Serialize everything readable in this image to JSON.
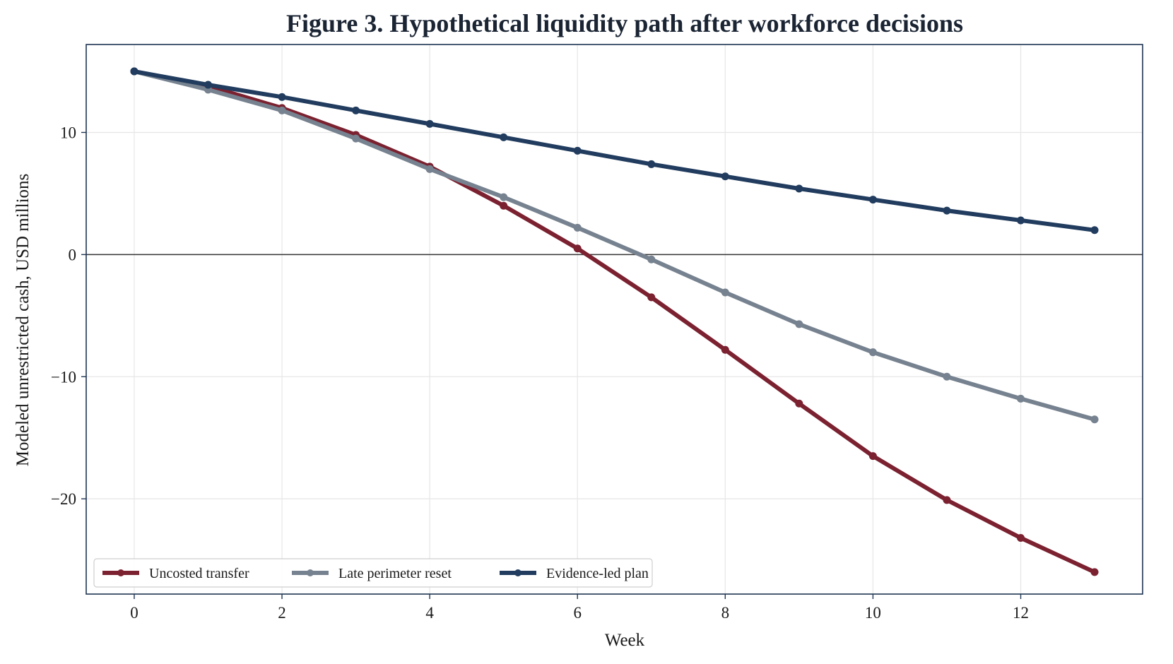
{
  "chart_data": {
    "type": "line",
    "title": "Figure 3. Hypothetical liquidity path after workforce decisions",
    "xlabel": "Week",
    "ylabel": "Modeled unrestricted cash, USD millions",
    "xlim": [
      -0.65,
      13.65
    ],
    "ylim": [
      -27.8,
      17.2
    ],
    "x_ticks": [
      0,
      2,
      4,
      6,
      8,
      10,
      12
    ],
    "y_ticks": [
      -20,
      -10,
      0,
      10
    ],
    "y_tick_labels": [
      "−20",
      "−10",
      "0",
      "10"
    ],
    "grid": true,
    "legend_position": "lower-left",
    "x": [
      0,
      1,
      2,
      3,
      4,
      5,
      6,
      7,
      8,
      9,
      10,
      11,
      12,
      13
    ],
    "series": [
      {
        "name": "Uncosted transfer",
        "color": "#7b2130",
        "values": [
          15.0,
          13.8,
          12.0,
          9.8,
          7.2,
          4.0,
          0.5,
          -3.5,
          -7.8,
          -12.2,
          -16.5,
          -20.1,
          -23.2,
          -26.0
        ]
      },
      {
        "name": "Late perimeter reset",
        "color": "#76828f",
        "values": [
          15.0,
          13.5,
          11.8,
          9.5,
          7.0,
          4.7,
          2.2,
          -0.4,
          -3.1,
          -5.7,
          -8.0,
          -10.0,
          -11.8,
          -13.5
        ]
      },
      {
        "name": "Evidence-led plan",
        "color": "#213c5e",
        "values": [
          15.0,
          13.9,
          12.9,
          11.8,
          10.7,
          9.6,
          8.5,
          7.4,
          6.4,
          5.4,
          4.5,
          3.6,
          2.8,
          2.0
        ]
      }
    ]
  }
}
